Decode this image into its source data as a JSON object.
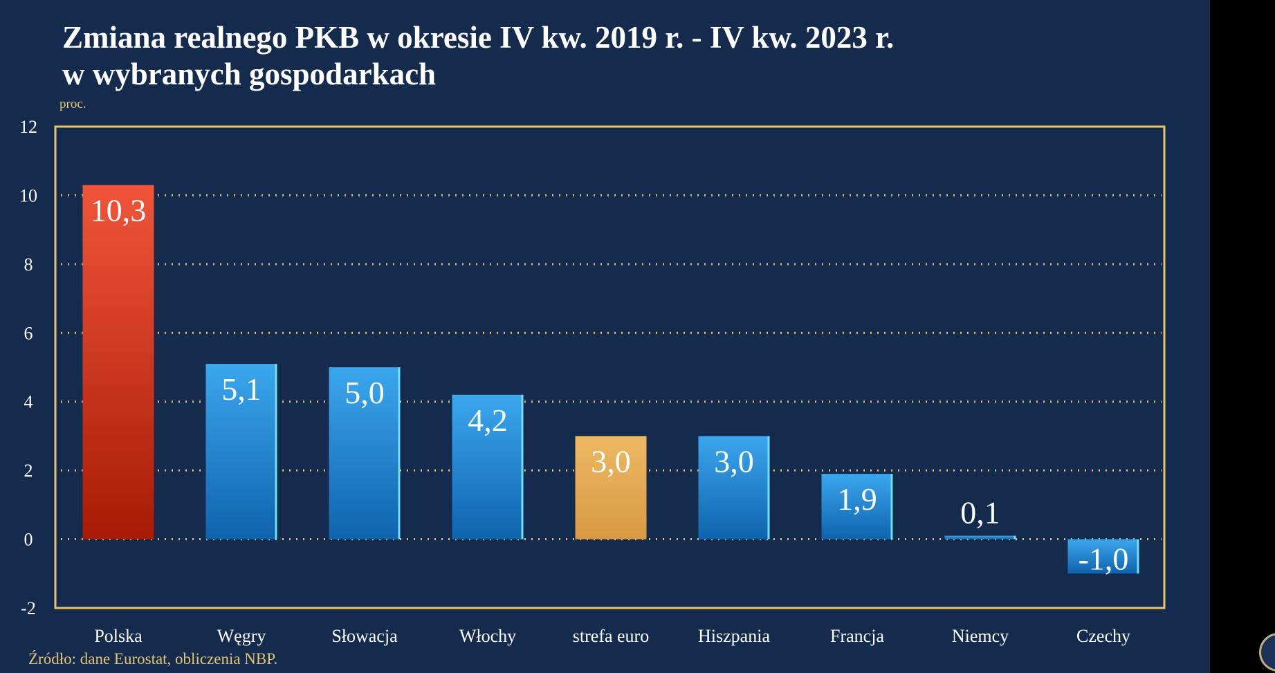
{
  "chart_data": {
    "type": "bar",
    "title": "Zmiana realnego PKB w okresie IV kw. 2019 r. - IV kw. 2023 r. w wybranych gospodarkach",
    "title_lines": [
      "Zmiana realnego PKB w okresie IV kw. 2019 r. - IV kw. 2023 r.",
      "w wybranych gospodarkach"
    ],
    "ylabel": "proc.",
    "xlabel": "",
    "ylim": [
      -2,
      12
    ],
    "yticks": [
      -2,
      0,
      2,
      4,
      6,
      8,
      10,
      12
    ],
    "grid": true,
    "categories": [
      "Polska",
      "Węgry",
      "Słowacja",
      "Włochy",
      "strefa euro",
      "Hiszpania",
      "Francja",
      "Niemcy",
      "Czechy"
    ],
    "values": [
      10.3,
      5.1,
      5.0,
      4.2,
      3.0,
      3.0,
      1.9,
      0.1,
      -1.0
    ],
    "data_labels": [
      "10,3",
      "5,1",
      "5,0",
      "4,2",
      "3,0",
      "3,0",
      "1,9",
      "0,1",
      "-1,0"
    ],
    "bar_colors": [
      "#d9321f",
      "#1f8fd8",
      "#1f8fd8",
      "#1f8fd8",
      "#e3a94f",
      "#1f8fd8",
      "#1f8fd8",
      "#1f8fd8",
      "#1f8fd8"
    ],
    "source": "Źródło: dane Eurostat, obliczenia NBP."
  },
  "colors": {
    "background": "#142b4d",
    "accent": "#e6c46e",
    "poland": "#d9321f",
    "euro_area": "#e3a94f",
    "others": "#1f8fd8"
  }
}
